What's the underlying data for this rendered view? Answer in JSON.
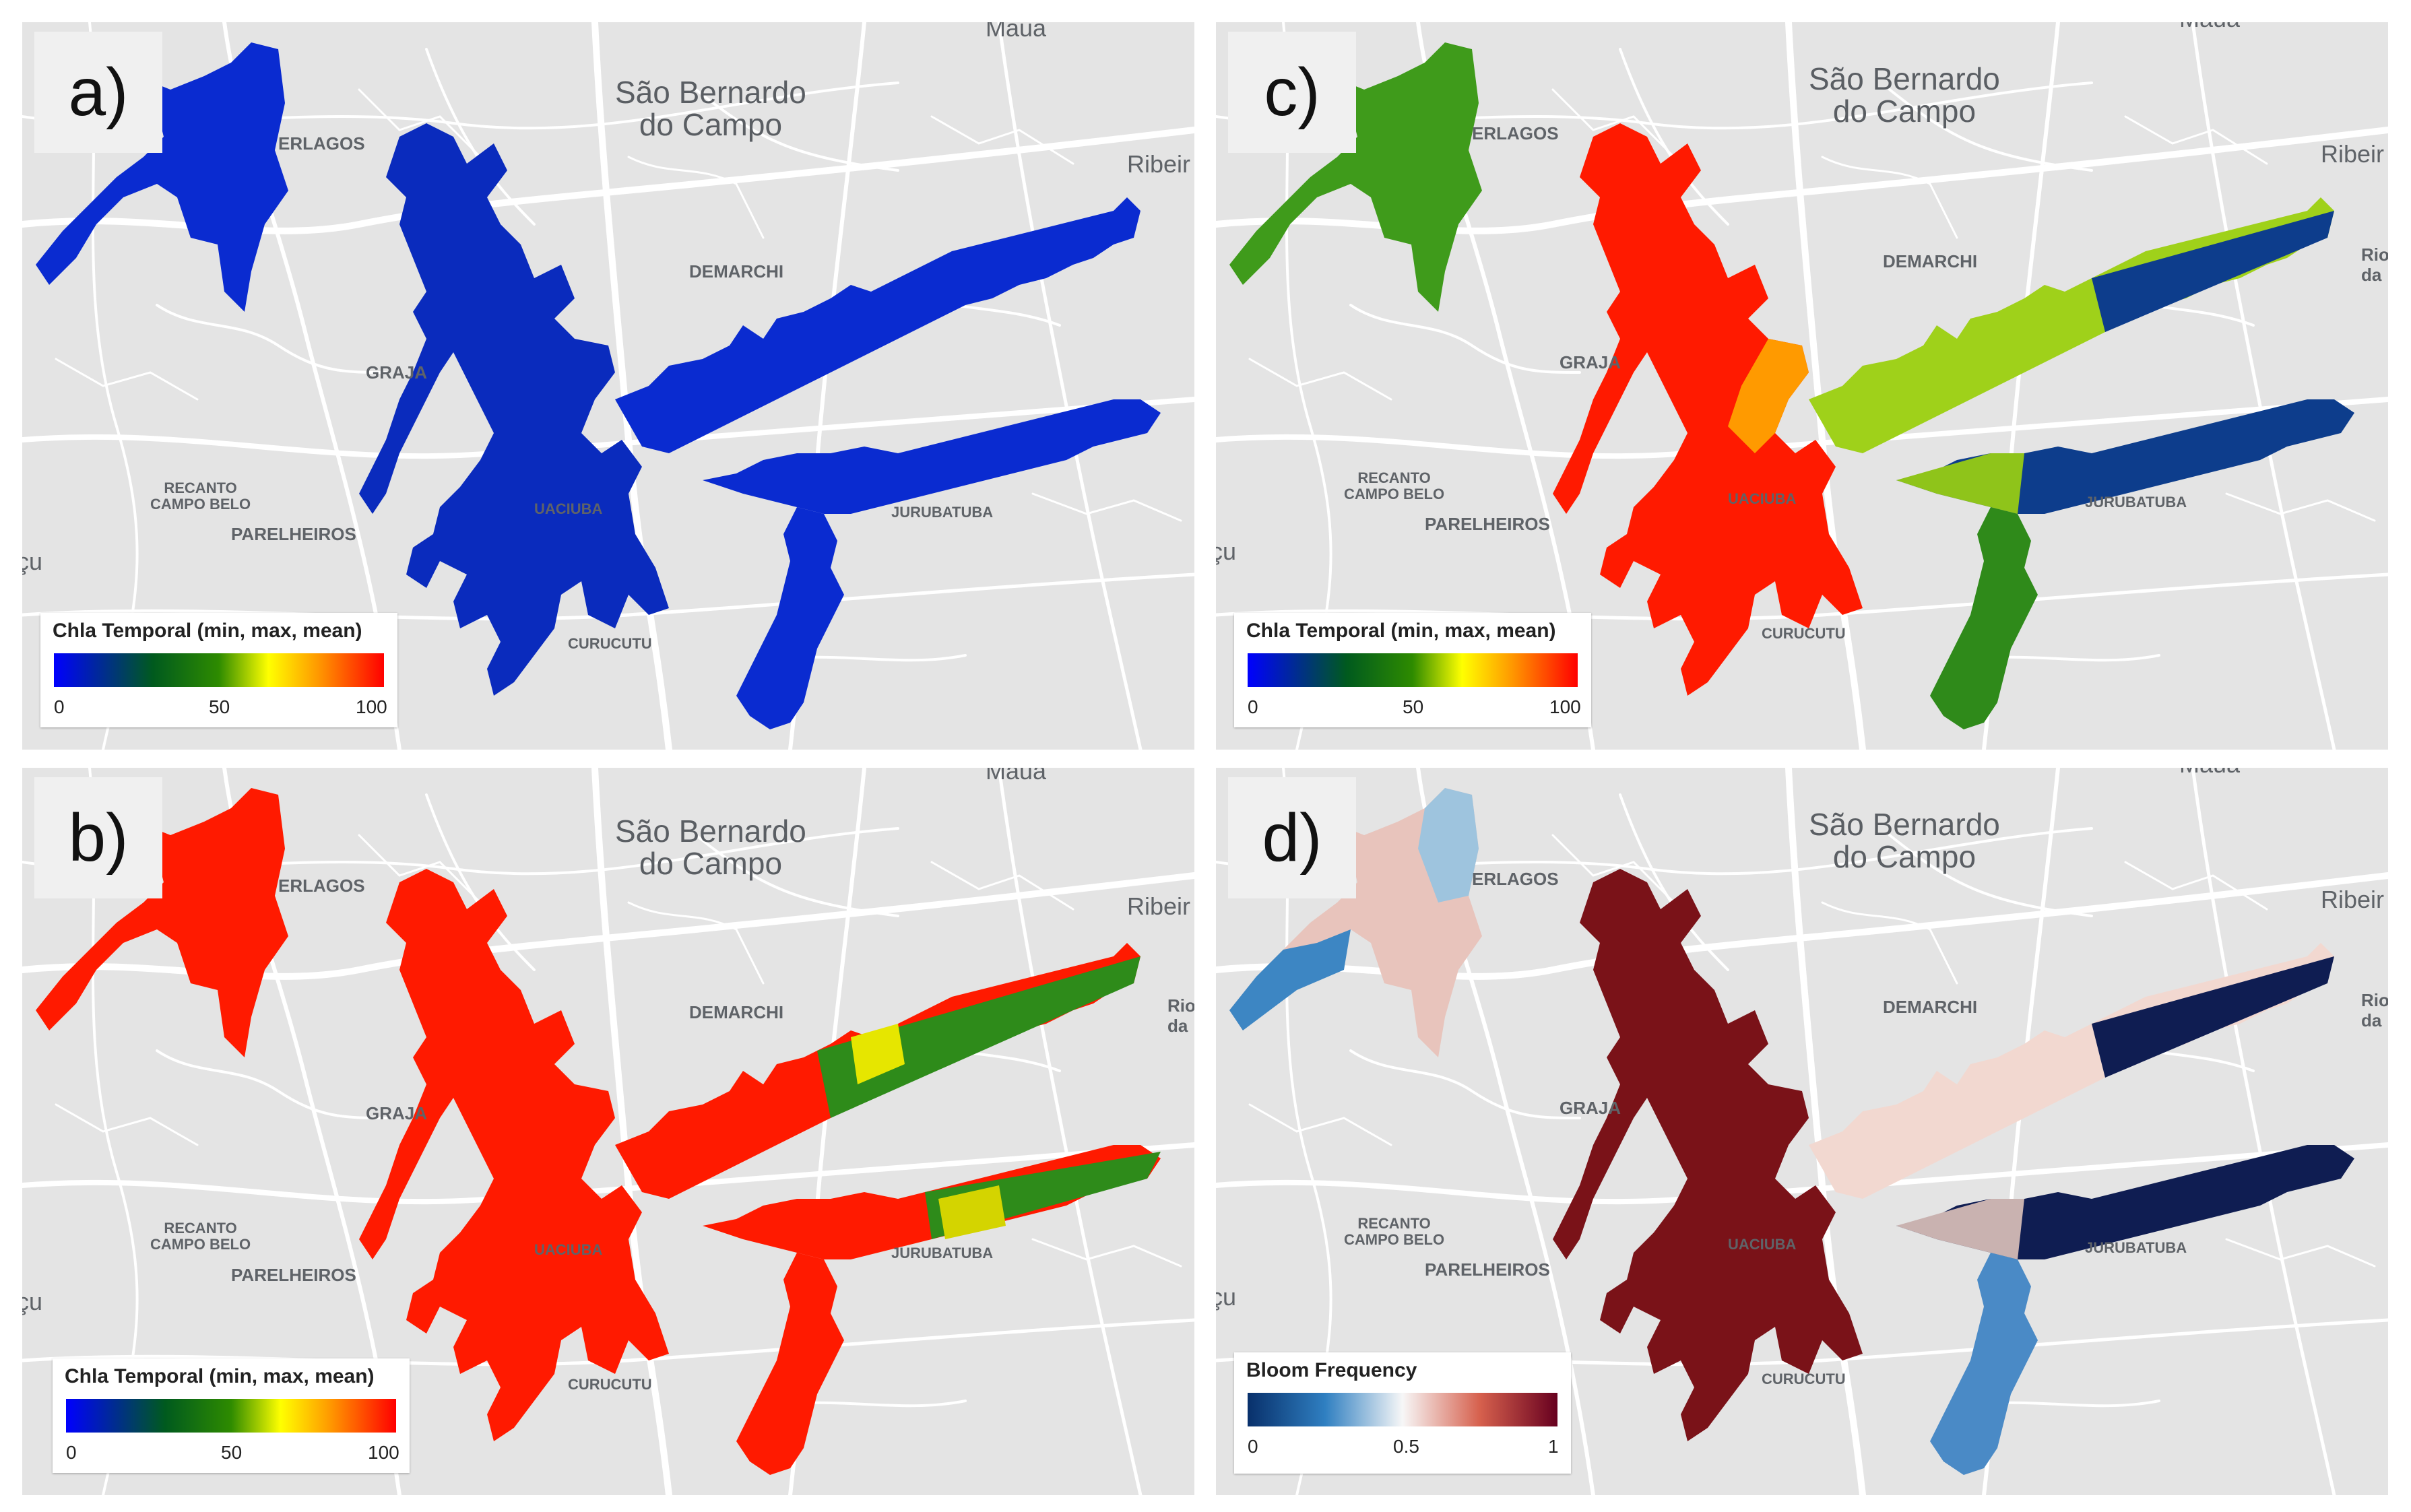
{
  "places": {
    "sao_bernardo": "São Bernardo\ndo Campo",
    "maua": "Maua",
    "ribeira": "Ribeir",
    "interlagos": "ERLAGOS",
    "demarchi": "DEMARCHI",
    "grajau": "GRAJA",
    "recanto": "RECANTO\nCAMPO BELO",
    "parelheiros": "PARELHEIROS",
    "curucutu": "CURUCUTU",
    "jurubatuba": "JURUBATUBA",
    "guaciuba": "UACIUBA",
    "cu": "çu",
    "rio": "Rio\nda"
  },
  "panels": [
    {
      "id": "a",
      "label": "a)",
      "legend_title": "Chla Temporal (min, max, mean)",
      "ticks": [
        "0",
        "50",
        "100"
      ],
      "scale": "chla"
    },
    {
      "id": "b",
      "label": "b)",
      "legend_title": "Chla Temporal (min, max, mean)",
      "ticks": [
        "0",
        "50",
        "100"
      ],
      "scale": "chla"
    },
    {
      "id": "c",
      "label": "c)",
      "legend_title": "Chla Temporal (min, max, mean)",
      "ticks": [
        "0",
        "50",
        "100"
      ],
      "scale": "chla"
    },
    {
      "id": "d",
      "label": "d)",
      "legend_title": "Bloom Frequency",
      "ticks": [
        "0",
        "0.5",
        "1"
      ],
      "scale": "bloom"
    }
  ],
  "colors": {
    "chla_scale": [
      "#0000ff",
      "#006400",
      "#ffff00",
      "#ff8c00",
      "#ff0000"
    ],
    "bloom_scale": [
      "#08306b",
      "#2171b5",
      "#f7f7f7",
      "#d6604d",
      "#67001f"
    ],
    "panel_a_water": "#0a2bd0",
    "panel_b_water": "#ff1a00",
    "panel_c_arm_left": "#3f9b1b",
    "panel_c_main": "#ff1a00",
    "panel_c_east": "#9fd11a",
    "panel_c_arm_right": "#0d3d8c",
    "panel_d_left": "#e8c4bc",
    "panel_d_main": "#7a1218",
    "panel_d_east": "#f2d8d0",
    "panel_d_arm_right": "#0f1d52",
    "panel_d_south": "#4a8ac6"
  }
}
